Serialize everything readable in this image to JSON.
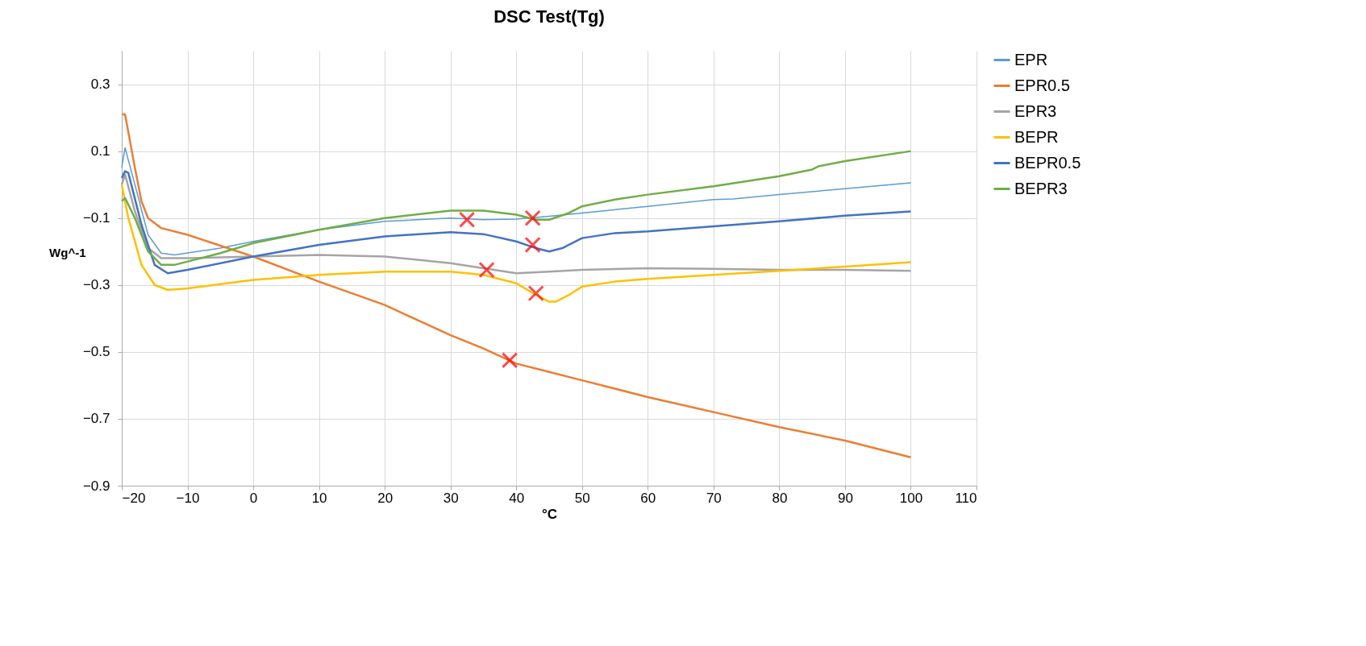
{
  "chart_data": {
    "type": "line",
    "title": "DSC Test(Tg)",
    "xlabel": "°C",
    "ylabel": "Wg^-1",
    "xlim": [
      -20,
      110
    ],
    "xticks": [
      -20,
      -10,
      0,
      10,
      20,
      30,
      40,
      50,
      60,
      70,
      80,
      90,
      100,
      110
    ],
    "ylim": [
      -0.9,
      0.4
    ],
    "yticks": [
      -0.9,
      -0.7,
      -0.5,
      -0.3,
      -0.1,
      0.1,
      0.3
    ],
    "grid": true,
    "legend": "right",
    "marker": "none",
    "line_style": "solid",
    "series": [
      {
        "name": "EPR",
        "color": "#5b9bd5",
        "x": [
          -20,
          -19.5,
          -18,
          -16,
          -14,
          -12,
          -5,
          0,
          10,
          20,
          30,
          35,
          40,
          45,
          50,
          60,
          70,
          73,
          80,
          90,
          100
        ],
        "values": [
          0.05,
          0.11,
          0.0,
          -0.15,
          -0.205,
          -0.21,
          -0.19,
          -0.17,
          -0.135,
          -0.11,
          -0.1,
          -0.105,
          -0.103,
          -0.095,
          -0.085,
          -0.065,
          -0.045,
          -0.043,
          -0.03,
          -0.012,
          0.005
        ]
      },
      {
        "name": "EPR0.5",
        "color": "#ed7d31",
        "x": [
          -20,
          -19.5,
          -18,
          -17,
          -16,
          -14,
          -10,
          0,
          10,
          20,
          30,
          35,
          40,
          45,
          50,
          60,
          70,
          80,
          90,
          100
        ],
        "values": [
          0.21,
          0.21,
          0.05,
          -0.05,
          -0.1,
          -0.13,
          -0.15,
          -0.215,
          -0.29,
          -0.36,
          -0.45,
          -0.49,
          -0.535,
          -0.56,
          -0.585,
          -0.635,
          -0.68,
          -0.725,
          -0.765,
          -0.815
        ]
      },
      {
        "name": "EPR3",
        "color": "#a5a5a5",
        "x": [
          -20,
          -19.5,
          -18,
          -16,
          -14,
          -10,
          0,
          10,
          20,
          30,
          35,
          40,
          45,
          50,
          60,
          70,
          80,
          90,
          100
        ],
        "values": [
          0.0,
          0.03,
          -0.08,
          -0.19,
          -0.22,
          -0.22,
          -0.215,
          -0.21,
          -0.215,
          -0.235,
          -0.25,
          -0.265,
          -0.26,
          -0.255,
          -0.25,
          -0.252,
          -0.255,
          -0.255,
          -0.258
        ]
      },
      {
        "name": "BEPR",
        "color": "#ffc000",
        "x": [
          -20,
          -19,
          -17,
          -15,
          -13,
          -10,
          0,
          10,
          20,
          30,
          35,
          40,
          43,
          45,
          46,
          48,
          50,
          55,
          60,
          70,
          80,
          90,
          100
        ],
        "values": [
          0.0,
          -0.1,
          -0.24,
          -0.3,
          -0.315,
          -0.31,
          -0.285,
          -0.27,
          -0.26,
          -0.26,
          -0.27,
          -0.295,
          -0.33,
          -0.35,
          -0.35,
          -0.33,
          -0.305,
          -0.29,
          -0.282,
          -0.27,
          -0.258,
          -0.245,
          -0.232
        ]
      },
      {
        "name": "BEPR0.5",
        "color": "#4472c4",
        "x": [
          -20,
          -19.5,
          -19,
          -17,
          -15,
          -13,
          -10,
          0,
          10,
          20,
          30,
          35,
          40,
          43,
          45,
          47,
          50,
          55,
          60,
          70,
          80,
          90,
          100
        ],
        "values": [
          0.02,
          0.04,
          0.035,
          -0.12,
          -0.24,
          -0.265,
          -0.255,
          -0.215,
          -0.18,
          -0.155,
          -0.142,
          -0.148,
          -0.17,
          -0.19,
          -0.2,
          -0.19,
          -0.16,
          -0.145,
          -0.14,
          -0.125,
          -0.11,
          -0.093,
          -0.08
        ]
      },
      {
        "name": "BEPR3",
        "color": "#70ad47",
        "x": [
          -20,
          -19.5,
          -18,
          -16,
          -14,
          -12,
          -5,
          0,
          10,
          20,
          30,
          35,
          40,
          43,
          45,
          48,
          50,
          55,
          60,
          70,
          80,
          85,
          86,
          90,
          100
        ],
        "values": [
          -0.05,
          -0.04,
          -0.1,
          -0.2,
          -0.24,
          -0.24,
          -0.205,
          -0.175,
          -0.135,
          -0.1,
          -0.078,
          -0.078,
          -0.09,
          -0.105,
          -0.105,
          -0.085,
          -0.065,
          -0.045,
          -0.03,
          -0.005,
          0.025,
          0.045,
          0.055,
          0.07,
          0.1
        ]
      },
      {
        "type": "scatter",
        "marker": "cross",
        "color": "#ff0000",
        "x": [
          32.5,
          42.5,
          42.5,
          35.5,
          43,
          39
        ],
        "values": [
          -0.105,
          -0.1,
          -0.18,
          -0.255,
          -0.325,
          -0.525
        ]
      }
    ]
  }
}
